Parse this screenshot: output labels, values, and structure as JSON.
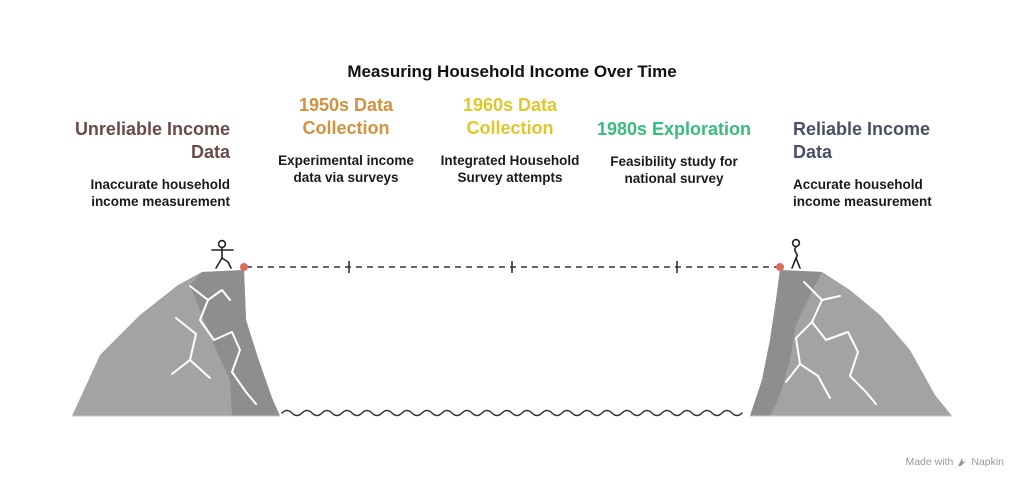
{
  "title": "Measuring Household Income Over Time",
  "stages": [
    {
      "heading": "Unreliable Income Data",
      "description": "Inaccurate household income measurement",
      "color": "#6b4a47"
    },
    {
      "heading": "1950s Data Collection",
      "description": "Experimental income data via surveys",
      "color": "#d4913e"
    },
    {
      "heading": "1960s Data Collection",
      "description": "Integrated Household Survey attempts",
      "color": "#e0c72a"
    },
    {
      "heading": "1980s Exploration",
      "description": "Feasibility study for national survey",
      "color": "#37bd7d"
    },
    {
      "heading": "Reliable Income Data",
      "description": "Accurate household income measurement",
      "color": "#4a5064"
    }
  ],
  "icons": [
    "cliff-left",
    "cliff-right",
    "stick-figure-walking",
    "stick-figure-standing",
    "water-waves"
  ],
  "footer": {
    "made_with": "Made with",
    "brand": "Napkin"
  }
}
